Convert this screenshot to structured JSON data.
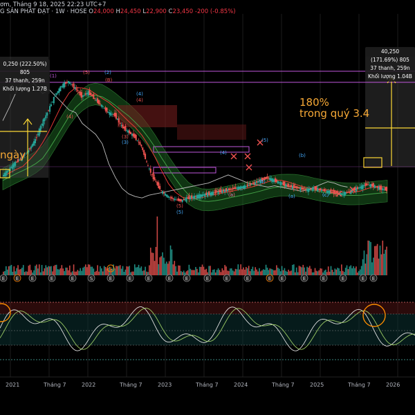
{
  "header": {
    "title": "ơm, Tháng 9 18, 2025 22:23 UTC+7",
    "symbol_line": "G SẢN PHÁT ĐẠT · 1W · HOSE",
    "open_label": "O",
    "open": "24,000",
    "high_label": "H",
    "high": "24,450",
    "low_label": "L",
    "low": "22,900",
    "close_label": "C",
    "close": "23,450",
    "change": "-200 (-0.85%)"
  },
  "left_box": {
    "line1": "0,250 (222.50%) 805",
    "line2": "37 thanh, 259n",
    "line3": "Khối lượng 1.27B"
  },
  "right_box": {
    "line1": "40,250 (171.69%) 805",
    "line2": "37 thanh, 259n",
    "line3": "Khối lượng 1.04B"
  },
  "annotations": {
    "percent": "180%",
    "quarter": "trong quý 3.4",
    "left_days": "ngày"
  },
  "wave_labels": [
    "(1)",
    "(5)",
    "(2)",
    "(B)",
    "(4)",
    "(4)",
    "(4)",
    "(3)",
    "(3)",
    "(5)",
    "(5)",
    "(a)",
    "(b)",
    "(b)",
    "(c)",
    "(4)",
    "(b)",
    "(a)",
    "(5)",
    "(c)",
    "(4)"
  ],
  "volume_markers": [
    "E",
    "S",
    "E"
  ],
  "chart_data": {
    "type": "line",
    "title": "",
    "x_ticks": [
      "2021",
      "Tháng 7",
      "2022",
      "Tháng 7",
      "2023",
      "Tháng 7",
      "2024",
      "Tháng 7",
      "2025",
      "Tháng 7",
      "2026"
    ],
    "series": [
      {
        "values": [
          33,
          38,
          43,
          47,
          52,
          60,
          72,
          82,
          93,
          100,
          103,
          98,
          92,
          95,
          90,
          85,
          80,
          78,
          70,
          66,
          62,
          55,
          40,
          30,
          22,
          18,
          16,
          15,
          17,
          18,
          19,
          20,
          21,
          22,
          23,
          24,
          25,
          26,
          28,
          30,
          32,
          30,
          28,
          26,
          25,
          24,
          23,
          24,
          23,
          22,
          21,
          20,
          21,
          23,
          25,
          27,
          26,
          24,
          23
        ]
      }
    ],
    "colors": {
      "up": "#26a69a",
      "down": "#ef5350",
      "rsi": "#c8c8c8",
      "cloud": "#2e7d32"
    }
  }
}
